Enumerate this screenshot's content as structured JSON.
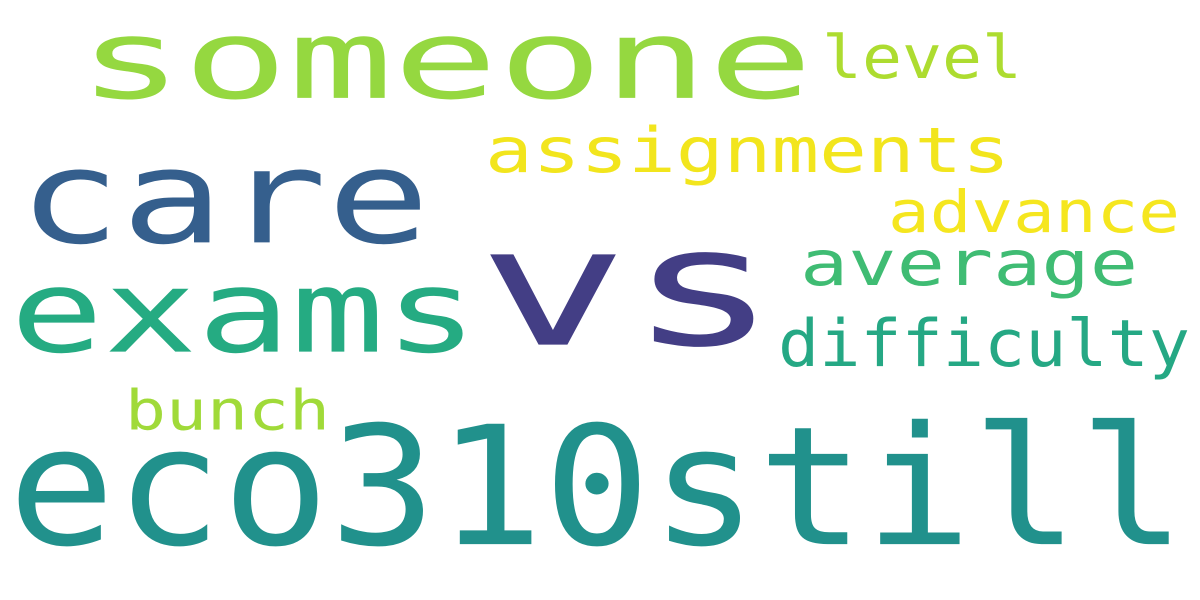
{
  "background": "#ffffff",
  "words": [
    {
      "text": "someone",
      "color": "#95d840"
    },
    {
      "text": "level",
      "color": "#addc30"
    },
    {
      "text": "care",
      "color": "#355f8d"
    },
    {
      "text": "assignments",
      "color": "#f2e51d"
    },
    {
      "text": "advance",
      "color": "#f5e61f"
    },
    {
      "text": "vs",
      "color": "#433e85"
    },
    {
      "text": "exams",
      "color": "#25ab82"
    },
    {
      "text": "average",
      "color": "#3fbc73"
    },
    {
      "text": "difficulty",
      "color": "#25a884"
    },
    {
      "text": "bunch",
      "color": "#a0da39"
    },
    {
      "text": "eco310still",
      "color": "#21918c"
    }
  ]
}
